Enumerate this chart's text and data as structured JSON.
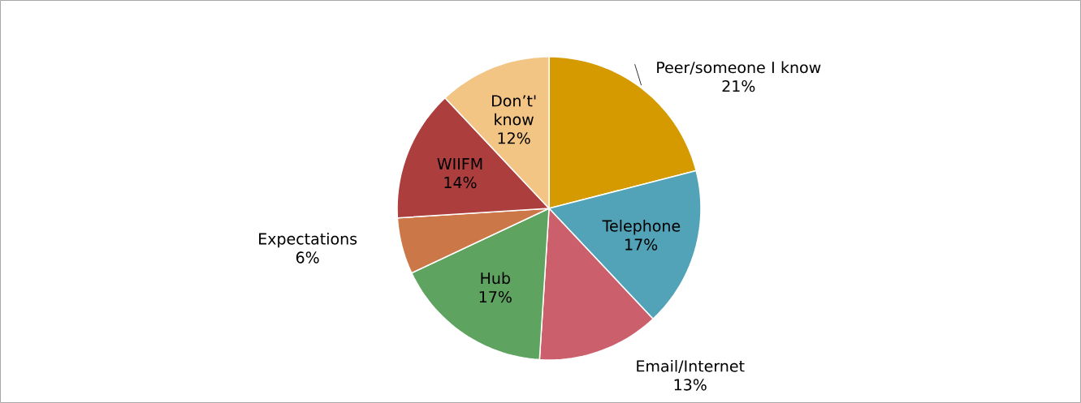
{
  "chart_data": {
    "type": "pie",
    "categories": [
      "Peer/someone I know",
      "Telephone",
      "Email/Internet",
      "Hub",
      "Expectations",
      "WIIFM",
      "Don’t' know"
    ],
    "values": [
      21,
      17,
      13,
      17,
      6,
      14,
      12
    ],
    "value_labels": [
      "21%",
      "17%",
      "13%",
      "17%",
      "6%",
      "14%",
      "12%"
    ],
    "colors": [
      "#d49a00",
      "#52a2b8",
      "#cc5f6c",
      "#5ea35f",
      "#cb7747",
      "#ad3e3e",
      "#f3c585"
    ]
  }
}
